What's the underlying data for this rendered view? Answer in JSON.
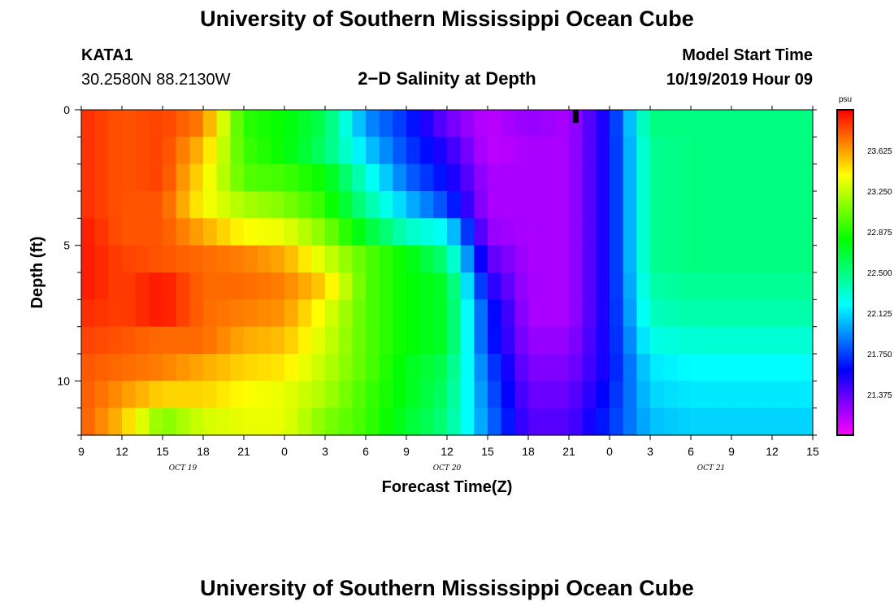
{
  "page": {
    "title_top": "University of Southern Mississippi Ocean Cube",
    "title_bottom": "University of Southern Mississippi Ocean Cube"
  },
  "header": {
    "station": "KATA1",
    "coords": "30.2580N 88.2130W",
    "chart_title": "2−D Salinity at Depth",
    "model_start_label": "Model Start Time",
    "model_start_value": "10/19/2019 Hour 09"
  },
  "chart_data": {
    "type": "heatmap",
    "title": "2−D Salinity at Depth",
    "xlabel": "Forecast Time(Z)",
    "ylabel": "Depth (ft)",
    "x_tick_labels": [
      "9",
      "12",
      "15",
      "18",
      "21",
      "0",
      "3",
      "6",
      "9",
      "12",
      "15",
      "18",
      "21",
      "0",
      "3",
      "6",
      "9",
      "12",
      "15"
    ],
    "x_date_labels": [
      {
        "label": "OCT 19",
        "hour_offset": 7.5
      },
      {
        "label": "OCT 20",
        "hour_offset": 27
      },
      {
        "label": "OCT 21",
        "hour_offset": 46.5
      }
    ],
    "x_range_hours": [
      0,
      54
    ],
    "y_tick_labels": [
      "0",
      "5",
      "10"
    ],
    "y_range_ft": [
      0,
      12
    ],
    "colorbar": {
      "unit": "psu",
      "range": [
        21.0,
        24.0
      ],
      "tick_labels": [
        "23.625",
        "23.250",
        "22.875",
        "22.500",
        "22.125",
        "21.750",
        "21.375"
      ],
      "tick_values": [
        23.625,
        23.25,
        22.875,
        22.5,
        22.125,
        21.75,
        21.375
      ]
    },
    "marker_hour": 36.5,
    "depth_levels_ft": [
      0.5,
      1.5,
      2.5,
      3.5,
      4.5,
      5.5,
      6.5,
      7.5,
      8.5,
      9.5,
      10.5,
      11.5
    ],
    "time_hours": [
      0,
      3,
      6,
      9,
      12,
      15,
      18,
      21,
      24,
      27,
      30,
      33,
      36,
      39,
      42,
      45,
      48,
      51,
      54
    ],
    "grid_psu": [
      [
        23.9,
        23.8,
        23.85,
        23.7,
        22.9,
        22.8,
        22.6,
        21.95,
        21.7,
        21.35,
        21.15,
        21.25,
        21.2,
        21.6,
        22.5,
        22.5,
        22.5,
        22.5,
        22.5
      ],
      [
        23.9,
        23.8,
        23.85,
        23.55,
        22.95,
        22.8,
        22.55,
        22.1,
        21.75,
        21.5,
        21.15,
        21.2,
        21.2,
        21.6,
        22.45,
        22.5,
        22.5,
        22.5,
        22.5
      ],
      [
        23.9,
        23.8,
        23.85,
        23.45,
        23.0,
        22.95,
        22.8,
        22.3,
        21.85,
        21.6,
        21.2,
        21.2,
        21.2,
        21.6,
        22.45,
        22.5,
        22.5,
        22.5,
        22.5
      ],
      [
        23.9,
        23.8,
        23.8,
        23.4,
        23.2,
        23.1,
        22.9,
        22.45,
        22.05,
        21.75,
        21.2,
        21.2,
        21.2,
        21.6,
        22.45,
        22.5,
        22.5,
        22.5,
        22.5
      ],
      [
        23.95,
        23.8,
        23.8,
        23.6,
        23.4,
        23.35,
        23.1,
        22.7,
        22.35,
        22.2,
        21.25,
        21.2,
        21.2,
        21.6,
        22.45,
        22.5,
        22.5,
        22.5,
        22.5
      ],
      [
        23.95,
        23.85,
        23.8,
        23.75,
        23.7,
        23.6,
        23.3,
        23.0,
        22.8,
        22.5,
        21.4,
        21.2,
        21.2,
        21.6,
        22.45,
        22.5,
        22.5,
        22.5,
        22.5
      ],
      [
        23.95,
        23.85,
        23.95,
        23.75,
        23.75,
        23.7,
        23.5,
        23.0,
        22.8,
        22.7,
        21.55,
        21.2,
        21.2,
        21.6,
        22.4,
        22.45,
        22.45,
        22.45,
        22.45
      ],
      [
        23.9,
        23.85,
        23.95,
        23.75,
        23.7,
        23.65,
        23.35,
        23.0,
        22.8,
        22.7,
        21.7,
        21.2,
        21.2,
        21.6,
        22.35,
        22.4,
        22.4,
        22.4,
        22.4
      ],
      [
        23.85,
        23.8,
        23.75,
        23.75,
        23.6,
        23.55,
        23.3,
        23.0,
        22.8,
        22.7,
        21.7,
        21.25,
        21.25,
        21.6,
        22.25,
        22.3,
        22.3,
        22.3,
        22.3
      ],
      [
        23.8,
        23.75,
        23.7,
        23.6,
        23.5,
        23.45,
        23.25,
        23.0,
        22.75,
        22.6,
        21.8,
        21.3,
        21.3,
        21.6,
        22.15,
        22.2,
        22.2,
        22.2,
        22.2
      ],
      [
        23.8,
        23.65,
        23.5,
        23.5,
        23.4,
        23.35,
        23.2,
        22.95,
        22.75,
        22.55,
        21.85,
        21.35,
        21.35,
        21.65,
        22.1,
        22.15,
        22.15,
        22.15,
        22.15
      ],
      [
        23.8,
        23.55,
        23.1,
        23.3,
        23.35,
        23.35,
        23.1,
        22.95,
        22.7,
        22.5,
        21.9,
        21.4,
        21.4,
        21.7,
        22.05,
        22.1,
        22.1,
        22.1,
        22.1
      ]
    ]
  }
}
